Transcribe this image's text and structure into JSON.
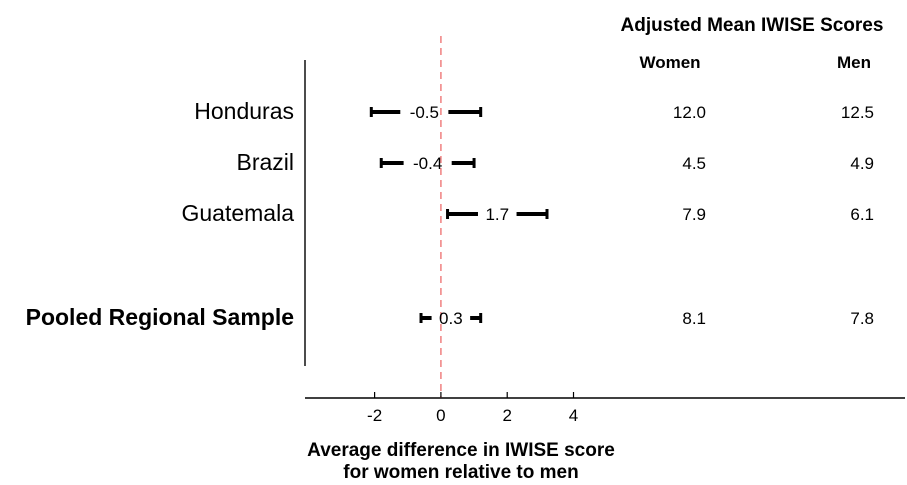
{
  "chart_data": {
    "type": "forest",
    "table_title": "Adjusted Mean IWISE Scores",
    "column_headers": [
      "Women",
      "Men"
    ],
    "xlabel_lines": [
      "Average difference in IWISE score",
      "for women relative to men"
    ],
    "xticks": [
      -2,
      0,
      2,
      4
    ],
    "xlim": [
      -4.1,
      14.0
    ],
    "reference_line": 0,
    "rows": [
      {
        "label": "Honduras",
        "bold": false,
        "estimate": -0.5,
        "estimate_label": "-0.5",
        "ci": [
          -2.1,
          1.2
        ],
        "women": "12.0",
        "men": "12.5"
      },
      {
        "label": "Brazil",
        "bold": false,
        "estimate": -0.4,
        "estimate_label": "-0.4",
        "ci": [
          -1.8,
          1.0
        ],
        "women": "4.5",
        "men": "4.9"
      },
      {
        "label": "Guatemala",
        "bold": false,
        "estimate": 1.7,
        "estimate_label": "1.7",
        "ci": [
          0.2,
          3.2
        ],
        "women": "7.9",
        "men": "6.1"
      },
      {
        "label": "Pooled Regional Sample",
        "bold": true,
        "estimate": 0.3,
        "estimate_label": "0.3",
        "ci": [
          -0.6,
          1.2
        ],
        "women": "8.1",
        "men": "7.8"
      }
    ],
    "colors": {
      "reference_line": "#f08080",
      "interval": "#000000"
    }
  }
}
